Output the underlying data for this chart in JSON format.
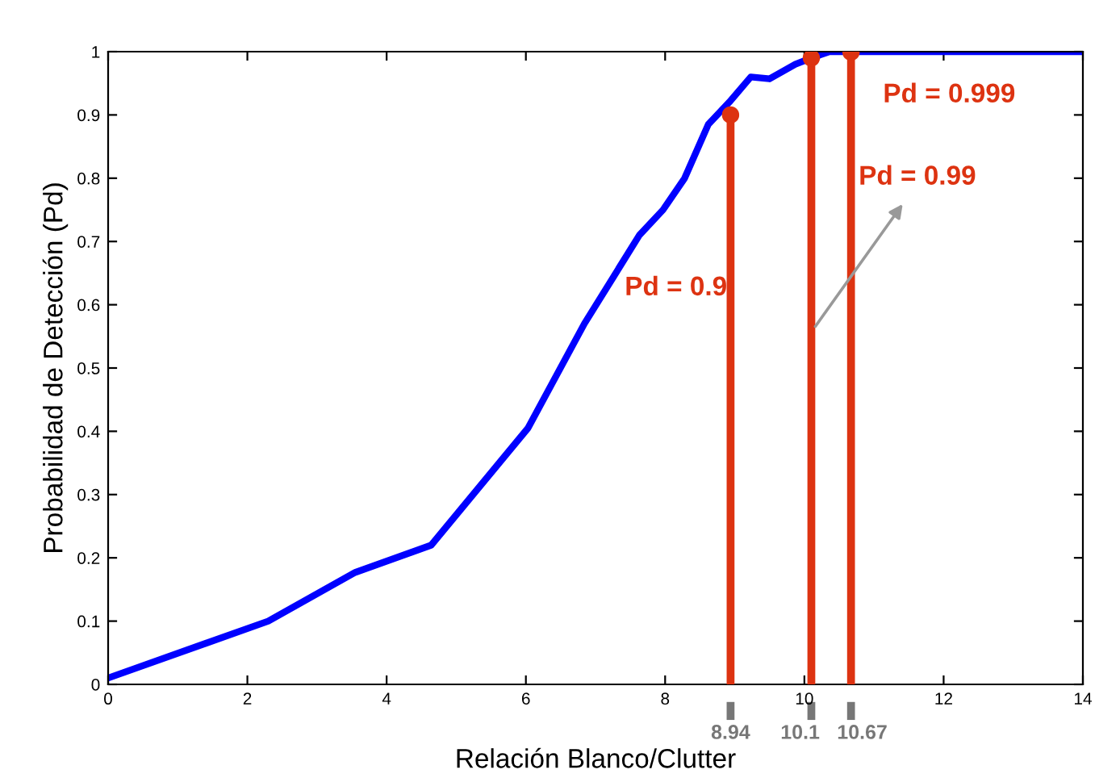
{
  "chart_data": {
    "type": "line",
    "xlabel": "Relación Blanco/Clutter",
    "ylabel": "Probabilidad de Detección (Pd)",
    "xlim": [
      0,
      14
    ],
    "ylim": [
      0,
      1
    ],
    "xticks": [
      0,
      2,
      4,
      6,
      8,
      10,
      12,
      14
    ],
    "yticks": [
      0,
      0.1,
      0.2,
      0.3,
      0.4,
      0.5,
      0.6,
      0.7,
      0.8,
      0.9,
      1
    ],
    "grid": false,
    "line_style": "solid",
    "series": [
      {
        "color": "#0000ff",
        "x": [
          0,
          2.3,
          3.55,
          4.64,
          6.03,
          6.84,
          7.63,
          7.97,
          8.28,
          8.62,
          8.92,
          9.23,
          9.5,
          9.87,
          10.1,
          10.36,
          14
        ],
        "values": [
          0.01,
          0.1,
          0.177,
          0.22,
          0.405,
          0.57,
          0.71,
          0.75,
          0.8,
          0.885,
          0.92,
          0.96,
          0.957,
          0.98,
          0.99,
          1.0,
          1.0
        ]
      },
      {
        "type": "lollipop",
        "marker": "circle",
        "color": "#dd3311",
        "x": [
          8.94,
          10.1,
          10.67
        ],
        "values": [
          0.9,
          0.99,
          0.999
        ]
      }
    ],
    "annotations": [
      "Pd = 0.9",
      "Pd = 0.99",
      "Pd = 0.999",
      "8.94",
      "10.1",
      "10.67"
    ]
  }
}
